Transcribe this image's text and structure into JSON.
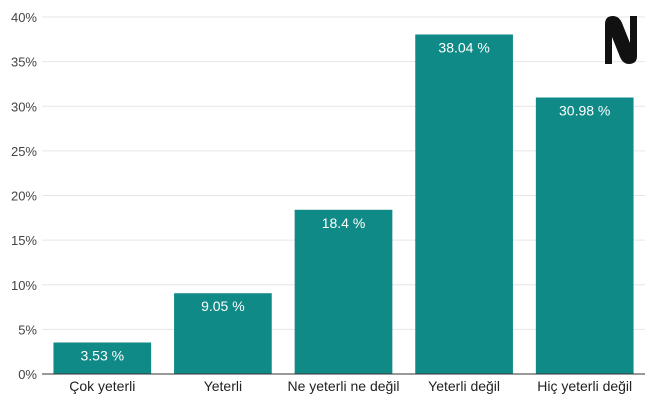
{
  "chart_data": {
    "type": "bar",
    "categories": [
      "Çok yeterli",
      "Yeterli",
      "Ne yeterli ne değil",
      "Yeterli değil",
      "Hiç yeterli değil"
    ],
    "values": [
      3.53,
      9.05,
      18.4,
      38.04,
      30.98
    ],
    "data_labels": [
      "3.53 %",
      "9.05 %",
      "18.4 %",
      "38.04 %",
      "30.98 %"
    ],
    "y_ticks": [
      "0%",
      "5%",
      "10%",
      "15%",
      "20%",
      "25%",
      "30%",
      "35%",
      "40%"
    ],
    "ylim": [
      0,
      40
    ],
    "grid": true,
    "bar_color": "#0f8a86"
  },
  "logo": {
    "icon": "n-logo-icon",
    "color": "#111111"
  }
}
